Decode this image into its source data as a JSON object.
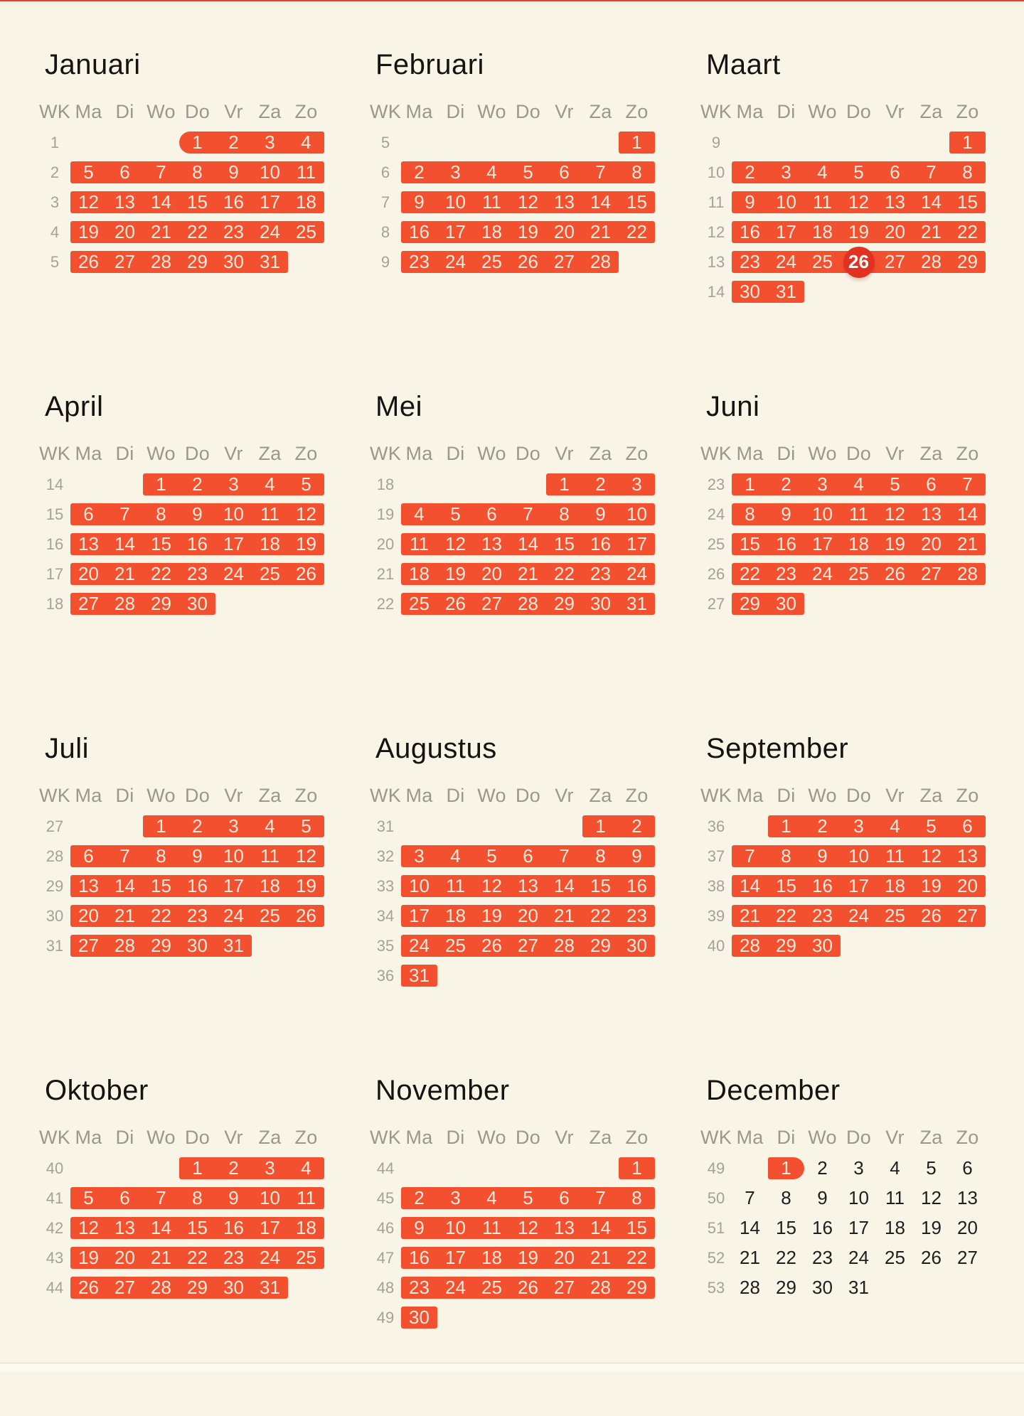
{
  "colors": {
    "bg": "#f9f5e6",
    "bar": "#f2502f",
    "today": "#e23120",
    "on_bar_text": "#f8eadc",
    "plain_text": "#1e1e1e",
    "head_text": "#9a978d",
    "wk_text": "#a4a197",
    "title_text": "#151311",
    "topline": "#dc4530",
    "bottom_strip": "#fcfaef"
  },
  "calendar": {
    "language": "nl",
    "day_headers": [
      "WK",
      "Ma",
      "Di",
      "Wo",
      "Do",
      "Vr",
      "Za",
      "Zo"
    ],
    "today": {
      "month": "Maart",
      "day": 26
    },
    "selection": {
      "start_month": "Januari",
      "start_day": 1,
      "end_month": "December",
      "end_day": 1
    },
    "months": [
      {
        "name": "Januari",
        "weeks": [
          {
            "wk": 1,
            "start": 4,
            "days": [
              1,
              2,
              3,
              4
            ],
            "hl": "all",
            "lcap": true
          },
          {
            "wk": 2,
            "start": 1,
            "days": [
              5,
              6,
              7,
              8,
              9,
              10,
              11
            ],
            "hl": "all"
          },
          {
            "wk": 3,
            "start": 1,
            "days": [
              12,
              13,
              14,
              15,
              16,
              17,
              18
            ],
            "hl": "all"
          },
          {
            "wk": 4,
            "start": 1,
            "days": [
              19,
              20,
              21,
              22,
              23,
              24,
              25
            ],
            "hl": "all"
          },
          {
            "wk": 5,
            "start": 1,
            "days": [
              26,
              27,
              28,
              29,
              30,
              31
            ],
            "hl": "all"
          }
        ]
      },
      {
        "name": "Februari",
        "weeks": [
          {
            "wk": 5,
            "start": 7,
            "days": [
              1
            ],
            "hl": "all"
          },
          {
            "wk": 6,
            "start": 1,
            "days": [
              2,
              3,
              4,
              5,
              6,
              7,
              8
            ],
            "hl": "all"
          },
          {
            "wk": 7,
            "start": 1,
            "days": [
              9,
              10,
              11,
              12,
              13,
              14,
              15
            ],
            "hl": "all"
          },
          {
            "wk": 8,
            "start": 1,
            "days": [
              16,
              17,
              18,
              19,
              20,
              21,
              22
            ],
            "hl": "all"
          },
          {
            "wk": 9,
            "start": 1,
            "days": [
              23,
              24,
              25,
              26,
              27,
              28
            ],
            "hl": "all"
          }
        ]
      },
      {
        "name": "Maart",
        "weeks": [
          {
            "wk": 9,
            "start": 7,
            "days": [
              1
            ],
            "hl": "all"
          },
          {
            "wk": 10,
            "start": 1,
            "days": [
              2,
              3,
              4,
              5,
              6,
              7,
              8
            ],
            "hl": "all"
          },
          {
            "wk": 11,
            "start": 1,
            "days": [
              9,
              10,
              11,
              12,
              13,
              14,
              15
            ],
            "hl": "all"
          },
          {
            "wk": 12,
            "start": 1,
            "days": [
              16,
              17,
              18,
              19,
              20,
              21,
              22
            ],
            "hl": "all"
          },
          {
            "wk": 13,
            "start": 1,
            "days": [
              23,
              24,
              25,
              26,
              27,
              28,
              29
            ],
            "hl": "all"
          },
          {
            "wk": 14,
            "start": 1,
            "days": [
              30,
              31
            ],
            "hl": "all"
          }
        ]
      },
      {
        "name": "April",
        "weeks": [
          {
            "wk": 14,
            "start": 3,
            "days": [
              1,
              2,
              3,
              4,
              5
            ],
            "hl": "all"
          },
          {
            "wk": 15,
            "start": 1,
            "days": [
              6,
              7,
              8,
              9,
              10,
              11,
              12
            ],
            "hl": "all"
          },
          {
            "wk": 16,
            "start": 1,
            "days": [
              13,
              14,
              15,
              16,
              17,
              18,
              19
            ],
            "hl": "all"
          },
          {
            "wk": 17,
            "start": 1,
            "days": [
              20,
              21,
              22,
              23,
              24,
              25,
              26
            ],
            "hl": "all"
          },
          {
            "wk": 18,
            "start": 1,
            "days": [
              27,
              28,
              29,
              30
            ],
            "hl": "all"
          }
        ]
      },
      {
        "name": "Mei",
        "weeks": [
          {
            "wk": 18,
            "start": 5,
            "days": [
              1,
              2,
              3
            ],
            "hl": "all"
          },
          {
            "wk": 19,
            "start": 1,
            "days": [
              4,
              5,
              6,
              7,
              8,
              9,
              10
            ],
            "hl": "all"
          },
          {
            "wk": 20,
            "start": 1,
            "days": [
              11,
              12,
              13,
              14,
              15,
              16,
              17
            ],
            "hl": "all"
          },
          {
            "wk": 21,
            "start": 1,
            "days": [
              18,
              19,
              20,
              21,
              22,
              23,
              24
            ],
            "hl": "all"
          },
          {
            "wk": 22,
            "start": 1,
            "days": [
              25,
              26,
              27,
              28,
              29,
              30,
              31
            ],
            "hl": "all"
          }
        ]
      },
      {
        "name": "Juni",
        "weeks": [
          {
            "wk": 23,
            "start": 1,
            "days": [
              1,
              2,
              3,
              4,
              5,
              6,
              7
            ],
            "hl": "all"
          },
          {
            "wk": 24,
            "start": 1,
            "days": [
              8,
              9,
              10,
              11,
              12,
              13,
              14
            ],
            "hl": "all"
          },
          {
            "wk": 25,
            "start": 1,
            "days": [
              15,
              16,
              17,
              18,
              19,
              20,
              21
            ],
            "hl": "all"
          },
          {
            "wk": 26,
            "start": 1,
            "days": [
              22,
              23,
              24,
              25,
              26,
              27,
              28
            ],
            "hl": "all"
          },
          {
            "wk": 27,
            "start": 1,
            "days": [
              29,
              30
            ],
            "hl": "all"
          }
        ]
      },
      {
        "name": "Juli",
        "weeks": [
          {
            "wk": 27,
            "start": 3,
            "days": [
              1,
              2,
              3,
              4,
              5
            ],
            "hl": "all"
          },
          {
            "wk": 28,
            "start": 1,
            "days": [
              6,
              7,
              8,
              9,
              10,
              11,
              12
            ],
            "hl": "all"
          },
          {
            "wk": 29,
            "start": 1,
            "days": [
              13,
              14,
              15,
              16,
              17,
              18,
              19
            ],
            "hl": "all"
          },
          {
            "wk": 30,
            "start": 1,
            "days": [
              20,
              21,
              22,
              23,
              24,
              25,
              26
            ],
            "hl": "all"
          },
          {
            "wk": 31,
            "start": 1,
            "days": [
              27,
              28,
              29,
              30,
              31
            ],
            "hl": "all"
          }
        ]
      },
      {
        "name": "Augustus",
        "weeks": [
          {
            "wk": 31,
            "start": 6,
            "days": [
              1,
              2
            ],
            "hl": "all"
          },
          {
            "wk": 32,
            "start": 1,
            "days": [
              3,
              4,
              5,
              6,
              7,
              8,
              9
            ],
            "hl": "all"
          },
          {
            "wk": 33,
            "start": 1,
            "days": [
              10,
              11,
              12,
              13,
              14,
              15,
              16
            ],
            "hl": "all"
          },
          {
            "wk": 34,
            "start": 1,
            "days": [
              17,
              18,
              19,
              20,
              21,
              22,
              23
            ],
            "hl": "all"
          },
          {
            "wk": 35,
            "start": 1,
            "days": [
              24,
              25,
              26,
              27,
              28,
              29,
              30
            ],
            "hl": "all"
          },
          {
            "wk": 36,
            "start": 1,
            "days": [
              31
            ],
            "hl": "all"
          }
        ]
      },
      {
        "name": "September",
        "weeks": [
          {
            "wk": 36,
            "start": 2,
            "days": [
              1,
              2,
              3,
              4,
              5,
              6
            ],
            "hl": "all"
          },
          {
            "wk": 37,
            "start": 1,
            "days": [
              7,
              8,
              9,
              10,
              11,
              12,
              13
            ],
            "hl": "all"
          },
          {
            "wk": 38,
            "start": 1,
            "days": [
              14,
              15,
              16,
              17,
              18,
              19,
              20
            ],
            "hl": "all"
          },
          {
            "wk": 39,
            "start": 1,
            "days": [
              21,
              22,
              23,
              24,
              25,
              26,
              27
            ],
            "hl": "all"
          },
          {
            "wk": 40,
            "start": 1,
            "days": [
              28,
              29,
              30
            ],
            "hl": "all"
          }
        ]
      },
      {
        "name": "Oktober",
        "weeks": [
          {
            "wk": 40,
            "start": 4,
            "days": [
              1,
              2,
              3,
              4
            ],
            "hl": "all"
          },
          {
            "wk": 41,
            "start": 1,
            "days": [
              5,
              6,
              7,
              8,
              9,
              10,
              11
            ],
            "hl": "all"
          },
          {
            "wk": 42,
            "start": 1,
            "days": [
              12,
              13,
              14,
              15,
              16,
              17,
              18
            ],
            "hl": "all"
          },
          {
            "wk": 43,
            "start": 1,
            "days": [
              19,
              20,
              21,
              22,
              23,
              24,
              25
            ],
            "hl": "all"
          },
          {
            "wk": 44,
            "start": 1,
            "days": [
              26,
              27,
              28,
              29,
              30,
              31
            ],
            "hl": "all"
          }
        ]
      },
      {
        "name": "November",
        "weeks": [
          {
            "wk": 44,
            "start": 7,
            "days": [
              1
            ],
            "hl": "all"
          },
          {
            "wk": 45,
            "start": 1,
            "days": [
              2,
              3,
              4,
              5,
              6,
              7,
              8
            ],
            "hl": "all"
          },
          {
            "wk": 46,
            "start": 1,
            "days": [
              9,
              10,
              11,
              12,
              13,
              14,
              15
            ],
            "hl": "all"
          },
          {
            "wk": 47,
            "start": 1,
            "days": [
              16,
              17,
              18,
              19,
              20,
              21,
              22
            ],
            "hl": "all"
          },
          {
            "wk": 48,
            "start": 1,
            "days": [
              23,
              24,
              25,
              26,
              27,
              28,
              29
            ],
            "hl": "all"
          },
          {
            "wk": 49,
            "start": 1,
            "days": [
              30
            ],
            "hl": "all"
          }
        ]
      },
      {
        "name": "December",
        "weeks": [
          {
            "wk": 49,
            "start": 2,
            "days": [
              1,
              2,
              3,
              4,
              5,
              6
            ],
            "hl": [
              0,
              0
            ],
            "rcap": true
          },
          {
            "wk": 50,
            "start": 1,
            "days": [
              7,
              8,
              9,
              10,
              11,
              12,
              13
            ],
            "hl": "none"
          },
          {
            "wk": 51,
            "start": 1,
            "days": [
              14,
              15,
              16,
              17,
              18,
              19,
              20
            ],
            "hl": "none"
          },
          {
            "wk": 52,
            "start": 1,
            "days": [
              21,
              22,
              23,
              24,
              25,
              26,
              27
            ],
            "hl": "none"
          },
          {
            "wk": 53,
            "start": 1,
            "days": [
              28,
              29,
              30,
              31
            ],
            "hl": "none"
          }
        ]
      }
    ]
  }
}
